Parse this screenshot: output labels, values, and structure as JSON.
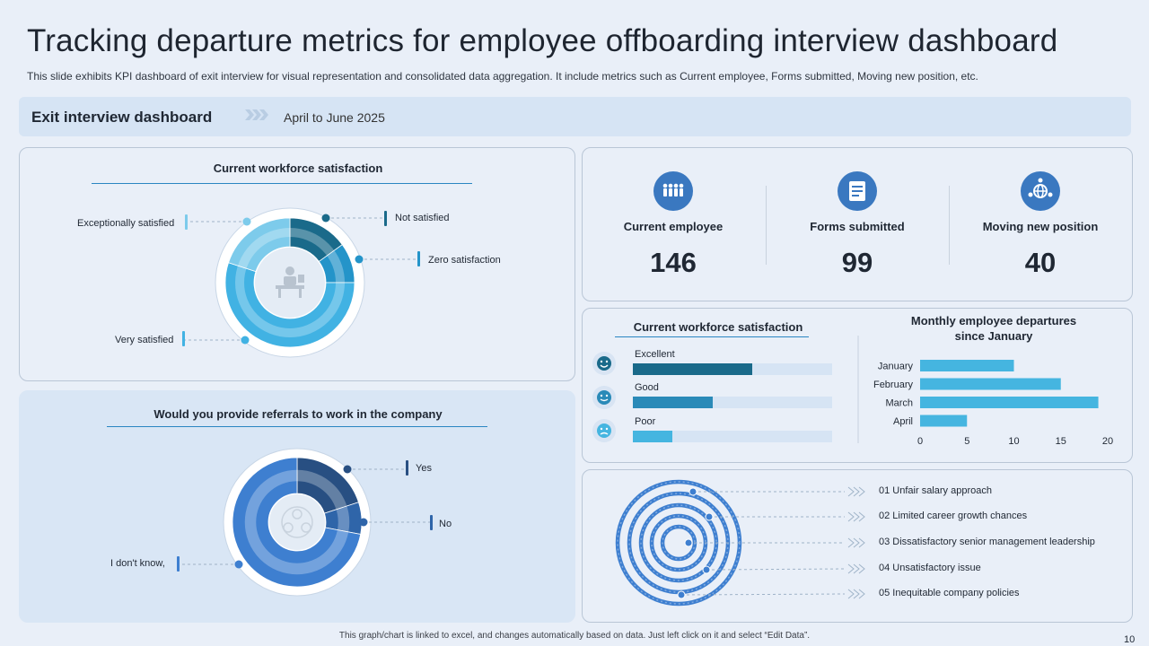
{
  "title": "Tracking departure metrics for employee offboarding interview dashboard",
  "subtitle": "This slide exhibits KPI dashboard of exit interview for visual representation and consolidated data aggregation. It include metrics such as Current employee, Forms submitted, Moving new position, etc.",
  "header": {
    "label": "Exit interview dashboard",
    "date": "April to June 2025"
  },
  "satisfaction_donut": {
    "title": "Current workforce satisfaction",
    "labels": {
      "exceptionally": "Exceptionally satisfied",
      "not": "Not satisfied",
      "zero": "Zero satisfaction",
      "very": "Very satisfied"
    }
  },
  "referrals_donut": {
    "title": "Would you provide referrals to work in the company",
    "labels": {
      "yes": "Yes",
      "no": "No",
      "dont_know": "I don't know,"
    }
  },
  "kpis": [
    {
      "label": "Current employee",
      "value": "146",
      "icon": "people-group-icon"
    },
    {
      "label": "Forms submitted",
      "value": "99",
      "icon": "form-icon"
    },
    {
      "label": "Moving new position",
      "value": "40",
      "icon": "globe-network-icon"
    }
  ],
  "satisfaction_bars": {
    "title": "Current workforce satisfaction",
    "items": [
      {
        "label": "Excellent",
        "fraction": 0.6,
        "color": "#1a6a8a",
        "face": "happy-face-icon"
      },
      {
        "label": "Good",
        "fraction": 0.4,
        "color": "#2a8ab8",
        "face": "neutral-face-icon"
      },
      {
        "label": "Poor",
        "fraction": 0.2,
        "color": "#45b5e0",
        "face": "sad-face-icon"
      }
    ]
  },
  "departures": {
    "title_line1": "Monthly employee departures",
    "title_line2": "since January"
  },
  "reasons": [
    "01 Unfair salary approach",
    "02 Limited career growth chances",
    "03 Dissatisfactory senior management leadership",
    "04 Unsatisfactory issue",
    "05 Inequitable company policies"
  ],
  "footer": "This graph/chart is linked to excel, and changes automatically based on data. Just left click on it and select “Edit Data”.",
  "page_number": "10",
  "chart_data": [
    {
      "type": "pie",
      "title": "Current workforce satisfaction",
      "categories": [
        "Not satisfied",
        "Zero satisfaction",
        "Very satisfied",
        "Exceptionally satisfied"
      ],
      "values": [
        15,
        10,
        55,
        20
      ],
      "colors": [
        "#1a6a8a",
        "#2494c9",
        "#41b2e3",
        "#7dcbeb"
      ]
    },
    {
      "type": "pie",
      "title": "Would you provide referrals to work in the company",
      "categories": [
        "Yes",
        "No",
        "I don't know,"
      ],
      "values": [
        20,
        8,
        72
      ],
      "colors": [
        "#284f82",
        "#2f65a9",
        "#3e7fd0"
      ]
    },
    {
      "type": "bar",
      "orientation": "horizontal",
      "title": "Monthly employee departures since January",
      "categories": [
        "January",
        "February",
        "March",
        "April"
      ],
      "values": [
        10,
        15,
        19,
        5
      ],
      "xlim": [
        0,
        20
      ],
      "xticks": [
        0,
        5,
        10,
        15,
        20
      ],
      "color": "#45b5e0"
    }
  ]
}
